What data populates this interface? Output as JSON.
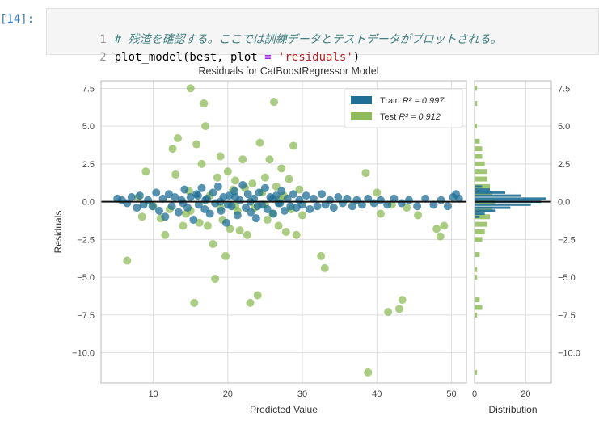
{
  "cell": {
    "prompt": "[14]:",
    "lines": [
      {
        "number": "1",
        "comment": "# 残渣を確認する。ここでは訓練データとテストデータがプロットされる。"
      },
      {
        "number": "2",
        "code_before": "plot_model(best, plot ",
        "operator": "=",
        "code_mid": " ",
        "string": "'residuals'",
        "code_after": ")"
      }
    ]
  },
  "colors": {
    "train": "#1f6f96",
    "test": "#8fbc5a",
    "zero_line": "#111111",
    "grid": "#dddddd"
  },
  "chart_data": {
    "type": "scatter",
    "title": "Residuals for CatBoostRegressor Model",
    "xlabel": "Predicted Value",
    "ylabel": "Residuals",
    "xlim": [
      3,
      52
    ],
    "ylim": [
      -12,
      8
    ],
    "xticks": [
      "10",
      "20",
      "30",
      "40",
      "50"
    ],
    "yticks": [
      "7.5",
      "5.0",
      "2.5",
      "0.0",
      "−2.5",
      "−5.0",
      "−7.5",
      "−10.0"
    ],
    "grid": true,
    "legend_position": "top-right",
    "legend": [
      {
        "label_prefix": "Train ",
        "label_r2": "R² = 0.997",
        "series": "train"
      },
      {
        "label_prefix": "Test ",
        "label_r2": "R² = 0.912",
        "series": "test"
      }
    ],
    "series": [
      {
        "name": "Train",
        "points": [
          [
            5.2,
            0.2
          ],
          [
            5.8,
            0.1
          ],
          [
            6.5,
            -0.1
          ],
          [
            7.1,
            0.3
          ],
          [
            7.8,
            -0.4
          ],
          [
            8.2,
            0.4
          ],
          [
            8.7,
            -0.2
          ],
          [
            9.3,
            0.1
          ],
          [
            9.9,
            -0.3
          ],
          [
            10.4,
            0.6
          ],
          [
            10.8,
            -0.6
          ],
          [
            11.3,
            0.2
          ],
          [
            11.6,
            -1.0
          ],
          [
            12.1,
            0.5
          ],
          [
            12.5,
            -0.3
          ],
          [
            12.9,
            0.3
          ],
          [
            13.4,
            -0.7
          ],
          [
            13.8,
            0.1
          ],
          [
            14.2,
            0.8
          ],
          [
            14.6,
            -0.4
          ],
          [
            15.0,
            0.3
          ],
          [
            15.4,
            -1.2
          ],
          [
            15.8,
            0.5
          ],
          [
            16.1,
            -0.2
          ],
          [
            16.5,
            0.9
          ],
          [
            16.9,
            -0.5
          ],
          [
            17.2,
            0.2
          ],
          [
            17.6,
            -0.8
          ],
          [
            18.0,
            0.6
          ],
          [
            18.3,
            -0.1
          ],
          [
            18.7,
            1.0
          ],
          [
            19.1,
            -0.6
          ],
          [
            19.4,
            0.3
          ],
          [
            19.8,
            -1.4
          ],
          [
            20.2,
            0.4
          ],
          [
            20.5,
            -0.3
          ],
          [
            20.9,
            0.7
          ],
          [
            21.3,
            -0.9
          ],
          [
            21.6,
            0.1
          ],
          [
            22.0,
            1.1
          ],
          [
            22.4,
            -0.4
          ],
          [
            22.7,
            0.5
          ],
          [
            23.1,
            -0.7
          ],
          [
            23.5,
            0.2
          ],
          [
            23.8,
            -1.1
          ],
          [
            24.2,
            0.6
          ],
          [
            24.6,
            -0.2
          ],
          [
            25.0,
            0.9
          ],
          [
            25.3,
            -0.5
          ],
          [
            25.7,
            0.3
          ],
          [
            26.1,
            -0.8
          ],
          [
            26.5,
            0.4
          ],
          [
            26.8,
            -0.1
          ],
          [
            27.2,
            0.7
          ],
          [
            27.6,
            -0.6
          ],
          [
            28.0,
            0.2
          ],
          [
            28.4,
            -0.3
          ],
          [
            28.8,
            0.5
          ],
          [
            29.2,
            -0.4
          ],
          [
            29.6,
            0.1
          ],
          [
            30.0,
            -0.2
          ],
          [
            30.5,
            0.4
          ],
          [
            31.0,
            -0.5
          ],
          [
            31.5,
            0.2
          ],
          [
            32.0,
            -0.3
          ],
          [
            32.6,
            0.5
          ],
          [
            33.1,
            -0.2
          ],
          [
            33.7,
            0.1
          ],
          [
            34.2,
            -0.4
          ],
          [
            34.8,
            0.3
          ],
          [
            35.4,
            -0.1
          ],
          [
            36.0,
            0.2
          ],
          [
            36.7,
            -0.3
          ],
          [
            37.3,
            0.1
          ],
          [
            38.0,
            -0.2
          ],
          [
            38.8,
            0.2
          ],
          [
            39.6,
            -0.1
          ],
          [
            40.5,
            0.1
          ],
          [
            41.4,
            -0.2
          ],
          [
            42.3,
            0.2
          ],
          [
            43.3,
            -0.1
          ],
          [
            44.3,
            0.1
          ],
          [
            45.4,
            -0.3
          ],
          [
            46.5,
            0.2
          ],
          [
            47.6,
            -0.2
          ],
          [
            48.6,
            0.1
          ],
          [
            49.5,
            -0.3
          ],
          [
            50.2,
            0.3
          ],
          [
            50.6,
            0.5
          ],
          [
            51.0,
            0.2
          ],
          [
            14.0,
            -0.1
          ],
          [
            17.0,
            0.1
          ],
          [
            20.0,
            -0.2
          ],
          [
            23.0,
            0.0
          ],
          [
            26.0,
            0.2
          ],
          [
            21.0,
            0.3
          ],
          [
            24.0,
            -0.3
          ],
          [
            19.0,
            0.0
          ],
          [
            27.0,
            -0.1
          ],
          [
            16.0,
            0.4
          ]
        ]
      },
      {
        "name": "Test",
        "points": [
          [
            6.5,
            -3.9
          ],
          [
            8.0,
            0.3
          ],
          [
            8.5,
            -1.0
          ],
          [
            9.0,
            2.0
          ],
          [
            10.0,
            -0.3
          ],
          [
            11.0,
            -1.1
          ],
          [
            11.6,
            -2.2
          ],
          [
            12.2,
            -0.5
          ],
          [
            12.6,
            3.5
          ],
          [
            13.0,
            1.8
          ],
          [
            13.3,
            4.2
          ],
          [
            14.0,
            -1.6
          ],
          [
            14.4,
            -0.8
          ],
          [
            14.8,
            0.7
          ],
          [
            15.0,
            7.5
          ],
          [
            15.5,
            -6.7
          ],
          [
            15.8,
            3.8
          ],
          [
            16.2,
            -1.4
          ],
          [
            16.5,
            2.5
          ],
          [
            16.8,
            6.5
          ],
          [
            17.0,
            5.0
          ],
          [
            17.3,
            -1.6
          ],
          [
            17.6,
            0.4
          ],
          [
            18.0,
            -2.8
          ],
          [
            18.3,
            -5.1
          ],
          [
            18.6,
            1.6
          ],
          [
            19.0,
            3.0
          ],
          [
            19.3,
            -1.2
          ],
          [
            19.7,
            -3.6
          ],
          [
            20.0,
            2.0
          ],
          [
            20.3,
            -1.8
          ],
          [
            20.7,
            0.8
          ],
          [
            21.0,
            1.4
          ],
          [
            21.3,
            -0.6
          ],
          [
            21.6,
            -1.9
          ],
          [
            22.0,
            2.8
          ],
          [
            22.3,
            0.9
          ],
          [
            22.6,
            -2.2
          ],
          [
            23.0,
            -6.7
          ],
          [
            23.3,
            1.2
          ],
          [
            23.6,
            -0.4
          ],
          [
            24.0,
            -6.2
          ],
          [
            24.3,
            3.9
          ],
          [
            24.6,
            0.6
          ],
          [
            25.0,
            1.6
          ],
          [
            25.3,
            -1.2
          ],
          [
            25.6,
            2.8
          ],
          [
            26.0,
            -0.8
          ],
          [
            26.2,
            6.6
          ],
          [
            26.5,
            1.0
          ],
          [
            26.8,
            -1.6
          ],
          [
            27.2,
            2.2
          ],
          [
            27.5,
            0.4
          ],
          [
            27.8,
            -2.0
          ],
          [
            28.2,
            1.5
          ],
          [
            28.5,
            -0.5
          ],
          [
            28.8,
            3.7
          ],
          [
            29.2,
            -2.2
          ],
          [
            29.6,
            0.8
          ],
          [
            30.0,
            -0.9
          ],
          [
            32.5,
            -3.6
          ],
          [
            33.0,
            -4.4
          ],
          [
            38.5,
            1.9
          ],
          [
            38.8,
            -11.3
          ],
          [
            40.0,
            0.6
          ],
          [
            40.5,
            -0.8
          ],
          [
            41.5,
            -7.3
          ],
          [
            42.0,
            -0.2
          ],
          [
            43.0,
            -7.1
          ],
          [
            43.4,
            -6.5
          ],
          [
            44.0,
            -0.4
          ],
          [
            45.5,
            -0.9
          ],
          [
            48.0,
            -1.8
          ],
          [
            48.5,
            -2.3
          ],
          [
            49.0,
            -1.6
          ],
          [
            21.0,
            -0.3
          ],
          [
            19.0,
            -0.4
          ],
          [
            25.0,
            -0.2
          ],
          [
            15.0,
            -0.6
          ],
          [
            27.0,
            0.2
          ]
        ]
      }
    ],
    "distribution": {
      "xlabel": "Distribution",
      "xticks": [
        "0",
        "20"
      ],
      "xlim": [
        0,
        30
      ],
      "left_ticks_note": "",
      "train_hist": [
        {
          "y": 0.2,
          "count": 28
        },
        {
          "y": 0.0,
          "count": 26
        },
        {
          "y": 0.4,
          "count": 18
        },
        {
          "y": -0.2,
          "count": 22
        },
        {
          "y": 0.6,
          "count": 12
        },
        {
          "y": -0.4,
          "count": 14
        },
        {
          "y": 0.8,
          "count": 6
        },
        {
          "y": -0.6,
          "count": 8
        },
        {
          "y": 1.0,
          "count": 3
        },
        {
          "y": -0.8,
          "count": 4
        },
        {
          "y": -1.0,
          "count": 2
        }
      ],
      "test_hist": [
        {
          "y": 7.5,
          "count": 1
        },
        {
          "y": 6.5,
          "count": 1
        },
        {
          "y": 5.0,
          "count": 1
        },
        {
          "y": 4.0,
          "count": 2
        },
        {
          "y": 3.5,
          "count": 3
        },
        {
          "y": 3.0,
          "count": 3
        },
        {
          "y": 2.5,
          "count": 4
        },
        {
          "y": 2.0,
          "count": 5
        },
        {
          "y": 1.5,
          "count": 5
        },
        {
          "y": 1.0,
          "count": 6
        },
        {
          "y": 0.5,
          "count": 7
        },
        {
          "y": 0.0,
          "count": 8
        },
        {
          "y": -0.5,
          "count": 7
        },
        {
          "y": -1.0,
          "count": 6
        },
        {
          "y": -1.5,
          "count": 5
        },
        {
          "y": -2.0,
          "count": 4
        },
        {
          "y": -2.5,
          "count": 3
        },
        {
          "y": -3.5,
          "count": 2
        },
        {
          "y": -4.5,
          "count": 1
        },
        {
          "y": -5.0,
          "count": 1
        },
        {
          "y": -6.5,
          "count": 2
        },
        {
          "y": -7.0,
          "count": 3
        },
        {
          "y": -7.5,
          "count": 1
        },
        {
          "y": -11.3,
          "count": 1
        }
      ]
    },
    "right_yticks": [
      "7.5",
      "5.0",
      "2.5",
      "0.0",
      "−2.5",
      "−5.0",
      "−7.5",
      "−10.0"
    ]
  }
}
